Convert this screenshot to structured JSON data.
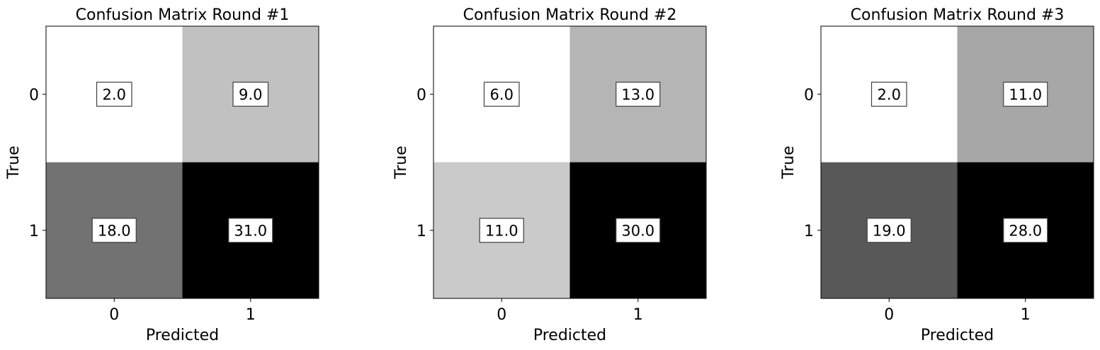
{
  "chart_data": [
    {
      "type": "heatmap",
      "title": "Confusion Matrix Round #1",
      "xlabel": "Predicted",
      "ylabel": "True",
      "x_categories": [
        "0",
        "1"
      ],
      "y_categories": [
        "0",
        "1"
      ],
      "values": [
        [
          2.0,
          9.0
        ],
        [
          18.0,
          31.0
        ]
      ],
      "labels": [
        [
          "2.0",
          "9.0"
        ],
        [
          "18.0",
          "31.0"
        ]
      ],
      "colormap": "grayscale (white = low, black = high)"
    },
    {
      "type": "heatmap",
      "title": "Confusion Matrix Round #2",
      "xlabel": "Predicted",
      "ylabel": "True",
      "x_categories": [
        "0",
        "1"
      ],
      "y_categories": [
        "0",
        "1"
      ],
      "values": [
        [
          6.0,
          13.0
        ],
        [
          11.0,
          30.0
        ]
      ],
      "labels": [
        [
          "6.0",
          "13.0"
        ],
        [
          "11.0",
          "30.0"
        ]
      ],
      "colormap": "grayscale (white = low, black = high)"
    },
    {
      "type": "heatmap",
      "title": "Confusion Matrix Round #3",
      "xlabel": "Predicted",
      "ylabel": "True",
      "x_categories": [
        "0",
        "1"
      ],
      "y_categories": [
        "0",
        "1"
      ],
      "values": [
        [
          2.0,
          11.0
        ],
        [
          19.0,
          28.0
        ]
      ],
      "labels": [
        [
          "2.0",
          "11.0"
        ],
        [
          "19.0",
          "28.0"
        ]
      ],
      "colormap": "grayscale (white = low, black = high)"
    }
  ]
}
